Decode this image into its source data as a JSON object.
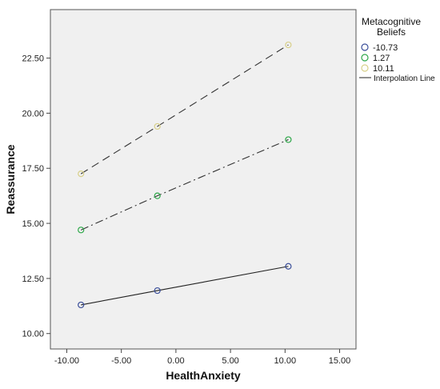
{
  "chart_data": {
    "type": "line",
    "xlabel": "HealthAnxiety",
    "ylabel": "Reassurance",
    "xlim": [
      -11.5,
      16.5
    ],
    "ylim": [
      9.3,
      24.7
    ],
    "x_ticks": [
      -10,
      -5,
      0,
      5,
      10,
      15
    ],
    "x_tick_labels": [
      "-10.00",
      "-5.00",
      "0.00",
      "5.00",
      "10.00",
      "15.00"
    ],
    "y_ticks": [
      10,
      12.5,
      15,
      17.5,
      20,
      22.5
    ],
    "y_tick_labels": [
      "10.00",
      "12.50",
      "15.00",
      "17.50",
      "20.00",
      "22.50"
    ],
    "legend": {
      "title_line1": "Metacognitive",
      "title_line2": "Beliefs",
      "line_label": "Interpolation Line",
      "position": "right"
    },
    "series": [
      {
        "name": "-10.73",
        "color": "#3b4f9a",
        "dash": "solid",
        "x": [
          -8.7,
          -1.7,
          10.3
        ],
        "y": [
          11.3,
          11.95,
          13.05
        ]
      },
      {
        "name": "1.27",
        "color": "#2fa84a",
        "dash": "dashdot",
        "x": [
          -8.7,
          -1.7,
          10.3
        ],
        "y": [
          14.7,
          16.25,
          18.8
        ]
      },
      {
        "name": "10.11",
        "color": "#d8d08a",
        "dash": "dashed",
        "x": [
          -8.7,
          -1.7,
          10.3
        ],
        "y": [
          17.25,
          19.4,
          23.1
        ]
      }
    ]
  }
}
